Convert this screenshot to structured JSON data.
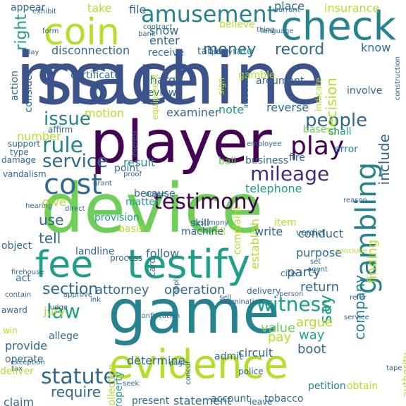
{
  "colors": {
    "background": "#ffffff",
    "palette": [
      "#3b528b",
      "#31688e",
      "#26828e",
      "#1f9e89",
      "#35b779",
      "#6ece58",
      "#b5de2b",
      "#440154",
      "#472c7a",
      "#fde725"
    ]
  },
  "words": [
    "machine",
    "player",
    "device",
    "game",
    "evidence",
    "check",
    "coin",
    "testify",
    "fee",
    "gambling",
    "amusement",
    "testimony",
    "mileage",
    "cost",
    "play",
    "people",
    "witness",
    "service",
    "rule",
    "issue",
    "statute",
    "law",
    "money",
    "record",
    "section",
    "say",
    "company",
    "finding",
    "decision",
    "include",
    "attorney",
    "operation",
    "jury",
    "pay",
    "party",
    "return",
    "argue",
    "value",
    "way",
    "boot",
    "telephone",
    "result",
    "note",
    "examiner",
    "reverse",
    "shall",
    "error",
    "base",
    "fire",
    "use",
    "tell",
    "give",
    "require",
    "provide",
    "operate",
    "determine",
    "circuit",
    "account",
    "tobacco",
    "petition",
    "obtain",
    "authority",
    "establish",
    "complaint",
    "item",
    "write",
    "conduct",
    "purpose",
    "follow",
    "landline",
    "skill",
    "because",
    "business",
    "ball",
    "point",
    "insurance",
    "know",
    "right",
    "show",
    "enter",
    "receive",
    "table",
    "rate",
    "disconnection",
    "charge",
    "review",
    "gamble",
    "argument",
    "indicate",
    "involve",
    "equipment",
    "motion",
    "sign",
    "certificate",
    "action",
    "consider",
    "number",
    "affirm",
    "support",
    "type",
    "damage",
    "vandalism",
    "matter",
    "verdict",
    "basis",
    "provision",
    "process",
    "call",
    "collection",
    "present",
    "leave",
    "claim",
    "contain",
    "award",
    "act",
    "object",
    "allege",
    "win",
    "police",
    "admit",
    "statement",
    "property",
    "take",
    "file",
    "place",
    "appear",
    "believe",
    "employee",
    "machine",
    "reason",
    "cite",
    "hearing",
    "exhibit",
    "contract",
    "warrant",
    "thing",
    "bank",
    "tax",
    "deliver",
    "agent",
    "delivery",
    "person",
    "conclude",
    "refer",
    "sell",
    "agree",
    "ink",
    "card",
    "firehouse",
    "apply",
    "approve",
    "concur",
    "language",
    "instruction",
    "construction",
    "policy",
    "interest",
    "proof",
    "form",
    "day",
    "direct",
    "judge",
    "confiscation",
    "examination",
    "seek",
    "page",
    "exception",
    "testimony",
    "service",
    "tape",
    "set",
    "grant",
    "issue"
  ]
}
